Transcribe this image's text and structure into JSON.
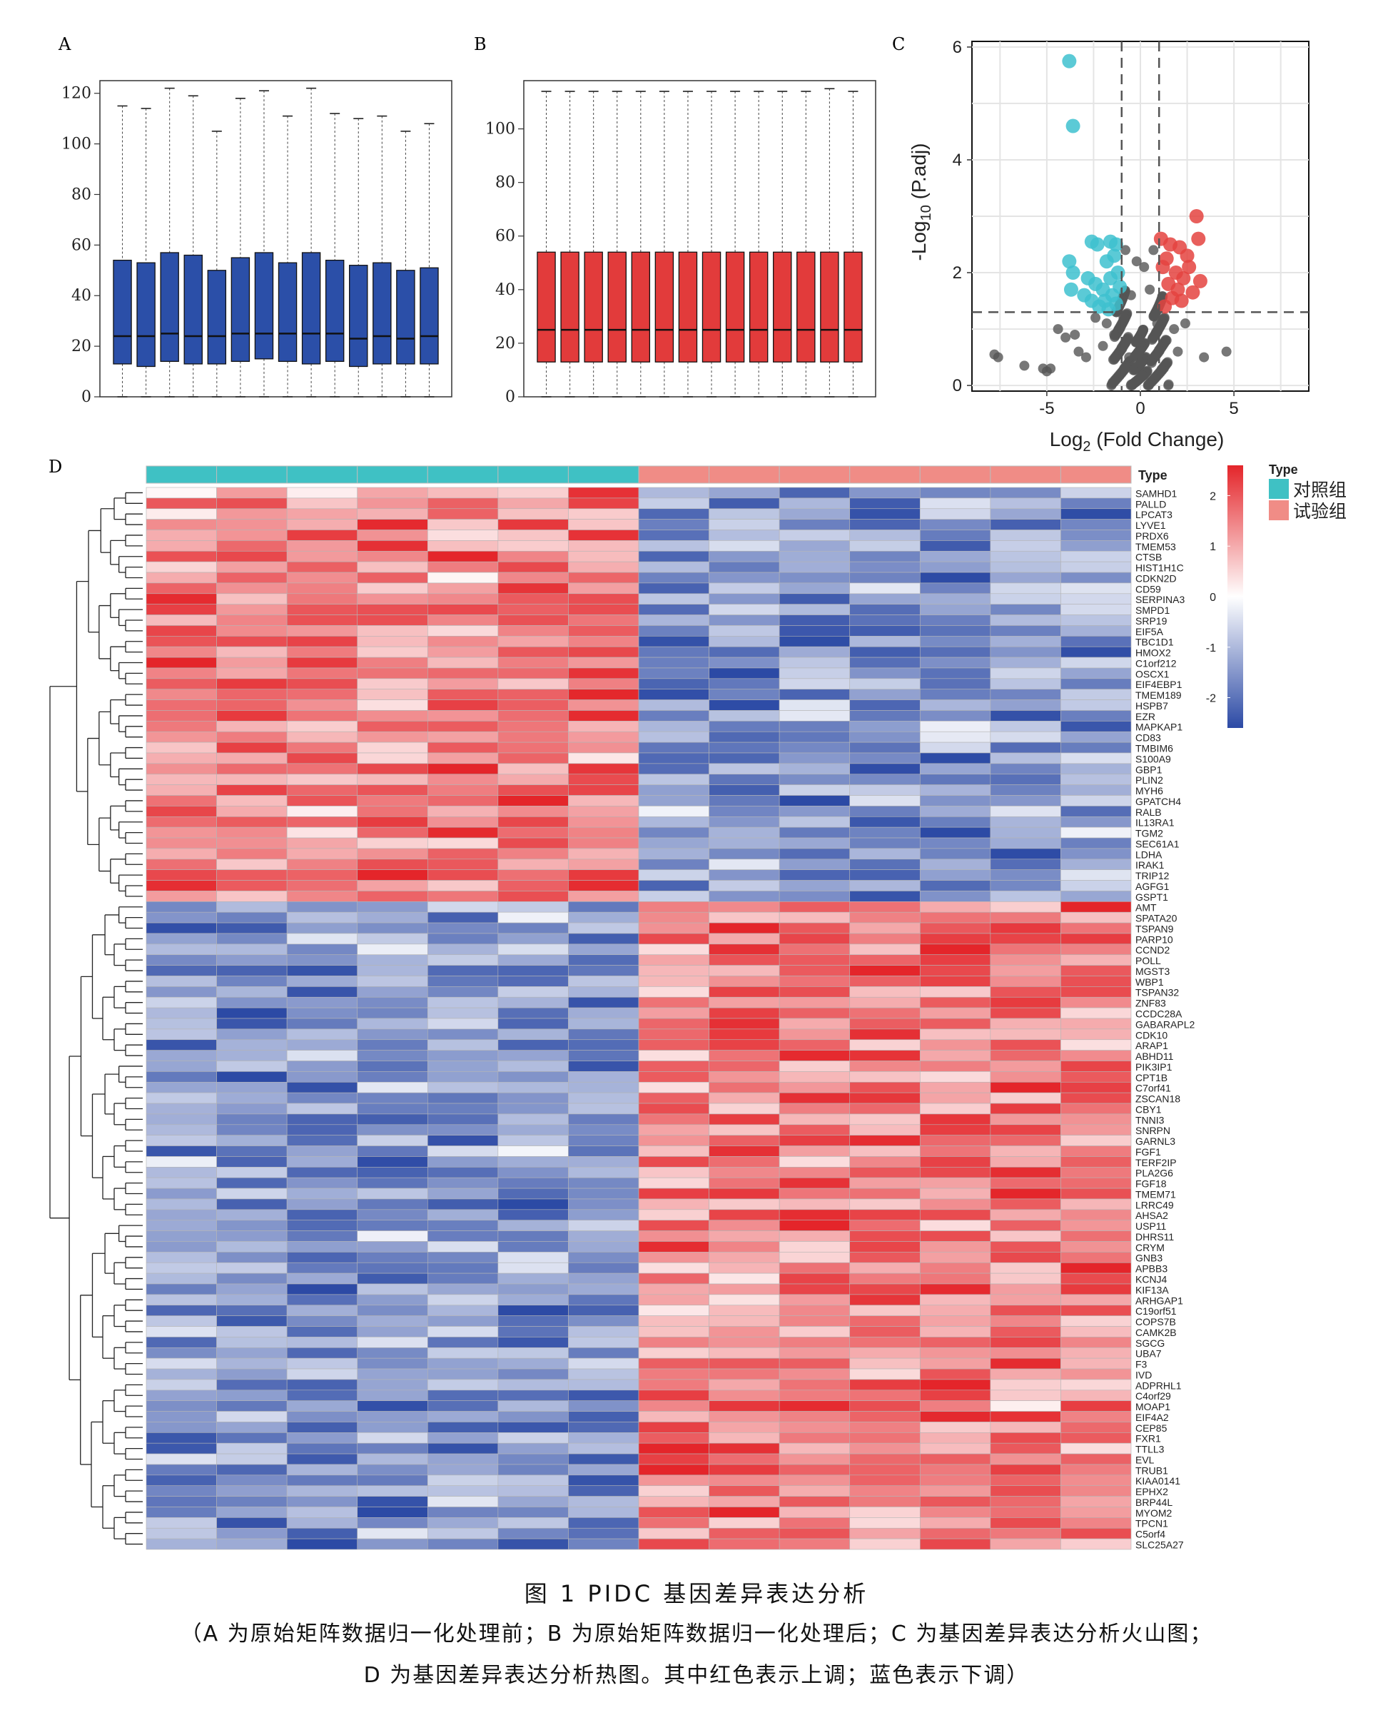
{
  "panels": {
    "A": "A",
    "B": "B",
    "C": "C",
    "D": "D"
  },
  "chart_data": [
    {
      "panel": "A",
      "type": "box",
      "ylim": [
        0,
        125
      ],
      "yticks": [
        0,
        20,
        40,
        60,
        80,
        100,
        120
      ],
      "color": "#2b4fa8",
      "boxes": [
        {
          "min": 0,
          "q1": 13,
          "median": 24,
          "q3": 54,
          "max": 115
        },
        {
          "min": 0,
          "q1": 12,
          "median": 24,
          "q3": 53,
          "max": 114
        },
        {
          "min": 0,
          "q1": 14,
          "median": 25,
          "q3": 57,
          "max": 122
        },
        {
          "min": 0,
          "q1": 13,
          "median": 24,
          "q3": 56,
          "max": 119
        },
        {
          "min": 0,
          "q1": 13,
          "median": 24,
          "q3": 50,
          "max": 105
        },
        {
          "min": 0,
          "q1": 14,
          "median": 25,
          "q3": 55,
          "max": 118
        },
        {
          "min": 0,
          "q1": 15,
          "median": 25,
          "q3": 57,
          "max": 121
        },
        {
          "min": 0,
          "q1": 14,
          "median": 25,
          "q3": 53,
          "max": 111
        },
        {
          "min": 0,
          "q1": 13,
          "median": 25,
          "q3": 57,
          "max": 122
        },
        {
          "min": 0,
          "q1": 14,
          "median": 25,
          "q3": 54,
          "max": 112
        },
        {
          "min": 0,
          "q1": 12,
          "median": 23,
          "q3": 52,
          "max": 110
        },
        {
          "min": 0,
          "q1": 13,
          "median": 24,
          "q3": 53,
          "max": 111
        },
        {
          "min": 0,
          "q1": 13,
          "median": 23,
          "q3": 50,
          "max": 105
        },
        {
          "min": 0,
          "q1": 13,
          "median": 24,
          "q3": 51,
          "max": 108
        }
      ]
    },
    {
      "panel": "B",
      "type": "box",
      "ylim": [
        0,
        118
      ],
      "yticks": [
        0,
        20,
        40,
        60,
        80,
        100
      ],
      "color": "#e23b3b",
      "boxes": [
        {
          "min": 0,
          "q1": 13,
          "median": 25,
          "q3": 54,
          "max": 114
        },
        {
          "min": 0,
          "q1": 13,
          "median": 25,
          "q3": 54,
          "max": 114
        },
        {
          "min": 0,
          "q1": 13,
          "median": 25,
          "q3": 54,
          "max": 114
        },
        {
          "min": 0,
          "q1": 13,
          "median": 25,
          "q3": 54,
          "max": 114
        },
        {
          "min": 0,
          "q1": 13,
          "median": 25,
          "q3": 54,
          "max": 114
        },
        {
          "min": 0,
          "q1": 13,
          "median": 25,
          "q3": 54,
          "max": 114
        },
        {
          "min": 0,
          "q1": 13,
          "median": 25,
          "q3": 54,
          "max": 114
        },
        {
          "min": 0,
          "q1": 13,
          "median": 25,
          "q3": 54,
          "max": 114
        },
        {
          "min": 0,
          "q1": 13,
          "median": 25,
          "q3": 54,
          "max": 114
        },
        {
          "min": 0,
          "q1": 13,
          "median": 25,
          "q3": 54,
          "max": 114
        },
        {
          "min": 0,
          "q1": 13,
          "median": 25,
          "q3": 54,
          "max": 114
        },
        {
          "min": 0,
          "q1": 13,
          "median": 25,
          "q3": 54,
          "max": 114
        },
        {
          "min": 0,
          "q1": 13,
          "median": 25,
          "q3": 54,
          "max": 115
        },
        {
          "min": 0,
          "q1": 13,
          "median": 25,
          "q3": 54,
          "max": 114
        }
      ]
    },
    {
      "panel": "C",
      "type": "scatter",
      "xlim": [
        -9,
        9
      ],
      "ylim": [
        -0.1,
        6.1
      ],
      "xticks": [
        -5,
        0,
        5
      ],
      "yticks": [
        0,
        2,
        4,
        6
      ],
      "xlabel_main": "Log",
      "xlabel_sub": "2",
      "xlabel_rest": " (Fold Change)",
      "ylabel_main": "-Log",
      "ylabel_sub": "10",
      "ylabel_rest": " (P.adj)",
      "thresholds": {
        "x": [
          -1,
          1
        ],
        "y": 1.3
      },
      "colors": {
        "down": "#3ec1cf",
        "up": "#e4433f",
        "ns": "#555555"
      },
      "down": [
        [
          -3.8,
          5.75
        ],
        [
          -3.6,
          4.6
        ],
        [
          -2.6,
          2.55
        ],
        [
          -2.3,
          2.5
        ],
        [
          -1.6,
          2.55
        ],
        [
          -1.3,
          2.5
        ],
        [
          -3.8,
          2.2
        ],
        [
          -3.6,
          2.0
        ],
        [
          -3.7,
          1.7
        ],
        [
          -3.0,
          1.6
        ],
        [
          -2.6,
          1.5
        ],
        [
          -2.2,
          1.4
        ],
        [
          -1.9,
          1.5
        ],
        [
          -1.5,
          1.6
        ],
        [
          -1.3,
          1.45
        ],
        [
          -1.2,
          2.0
        ],
        [
          -1.6,
          1.9
        ],
        [
          -2.0,
          1.7
        ],
        [
          -1.4,
          2.3
        ],
        [
          -1.8,
          2.2
        ],
        [
          -2.4,
          1.8
        ],
        [
          -1.1,
          1.75
        ],
        [
          -1.7,
          1.35
        ],
        [
          -2.8,
          1.9
        ]
      ],
      "up": [
        [
          3.0,
          3.0
        ],
        [
          3.1,
          2.6
        ],
        [
          1.1,
          2.6
        ],
        [
          1.6,
          2.5
        ],
        [
          2.1,
          2.45
        ],
        [
          2.5,
          2.3
        ],
        [
          3.2,
          1.85
        ],
        [
          2.8,
          1.65
        ],
        [
          2.2,
          1.5
        ],
        [
          1.3,
          1.4
        ],
        [
          1.5,
          1.8
        ],
        [
          1.9,
          2.0
        ],
        [
          2.3,
          1.9
        ],
        [
          1.2,
          2.1
        ],
        [
          1.7,
          1.55
        ],
        [
          2.6,
          2.1
        ],
        [
          1.4,
          2.25
        ],
        [
          2.0,
          1.7
        ]
      ],
      "ns": [
        [
          -7.8,
          0.55
        ],
        [
          -7.6,
          0.5
        ],
        [
          -6.2,
          0.35
        ],
        [
          -5.2,
          0.3
        ],
        [
          -5.0,
          0.25
        ],
        [
          -4.8,
          0.3
        ],
        [
          -4.4,
          1.0
        ],
        [
          -4.0,
          0.85
        ],
        [
          -3.5,
          0.9
        ],
        [
          -3.3,
          0.6
        ],
        [
          -2.9,
          0.5
        ],
        [
          4.6,
          0.6
        ],
        [
          3.4,
          0.5
        ],
        [
          -0.5,
          1.6
        ],
        [
          0.5,
          1.7
        ],
        [
          -0.8,
          2.4
        ],
        [
          0.7,
          2.4
        ],
        [
          -0.2,
          2.2
        ],
        [
          0.2,
          2.1
        ],
        [
          -0.9,
          1.2
        ],
        [
          0.9,
          1.1
        ],
        [
          -1.4,
          0.9
        ],
        [
          1.4,
          0.8
        ],
        [
          -2.0,
          0.7
        ],
        [
          2.0,
          0.6
        ],
        [
          -0.6,
          0.5
        ],
        [
          0.6,
          0.4
        ],
        [
          -1.8,
          1.1
        ],
        [
          1.8,
          1.0
        ],
        [
          -2.4,
          1.2
        ],
        [
          2.4,
          1.1
        ]
      ],
      "cluster": [
        [
          -1.0,
          0.0,
          0.55,
          1.7
        ],
        [
          1.0,
          0.0,
          0.55,
          1.6
        ],
        [
          0.0,
          0.0,
          0.45,
          1.0
        ]
      ]
    },
    {
      "panel": "D",
      "type": "heatmap",
      "annotation_label": "Type",
      "legend_title": "Type",
      "groups": [
        "对照组",
        "试验组"
      ],
      "group_colors": [
        "#3fc1c4",
        "#f08c86"
      ],
      "samples_per_group": [
        7,
        7
      ],
      "scale": {
        "ticks": [
          2,
          1,
          0,
          -1,
          -2
        ],
        "min": -2.6,
        "max": 2.6,
        "colors": [
          "#2c4aa5",
          "#ffffff",
          "#e4252a"
        ]
      },
      "genes": [
        "SAMHD1",
        "PALLD",
        "LPCAT3",
        "LYVE1",
        "PRDX6",
        "TMEM53",
        "CTSB",
        "HIST1H1C",
        "CDKN2D",
        "CD59",
        "SERPINA3",
        "SMPD1",
        "SRP19",
        "EIF5A",
        "TBC1D1",
        "HMOX2",
        "C1orf212",
        "OSCX1",
        "EIF4EBP1",
        "TMEM189",
        "HSPB7",
        "EZR",
        "MAPKAP1",
        "CD83",
        "TMBIM6",
        "S100A9",
        "GBP1",
        "PLIN2",
        "MYH6",
        "GPATCH4",
        "RALB",
        "IL13RA1",
        "TGM2",
        "SEC61A1",
        "LDHA",
        "IRAK1",
        "TRIP12",
        "AGFG1",
        "GSPT1",
        "AMT",
        "SPATA20",
        "TSPAN9",
        "PARP10",
        "CCND2",
        "POLL",
        "MGST3",
        "WBP1",
        "TSPAN32",
        "ZNF83",
        "CCDC28A",
        "GABARAPL2",
        "CDK10",
        "ARAP1",
        "ABHD11",
        "PIK3IP1",
        "CPT1B",
        "C7orf41",
        "ZSCAN18",
        "CBY1",
        "TNNI3",
        "SNRPN",
        "GARNL3",
        "FGF1",
        "TERF2IP",
        "PLA2G6",
        "FGF18",
        "TMEM71",
        "LRRC49",
        "AHSA2",
        "USP11",
        "DHRS11",
        "CRYM",
        "GNB3",
        "APBB3",
        "KCNJ4",
        "KIF13A",
        "ARHGAP1",
        "C19orf51",
        "COPS7B",
        "CAMK2B",
        "SGCG",
        "UBA7",
        "F3",
        "IVD",
        "ADPRHL1",
        "C4orf29",
        "MOAP1",
        "EIF4A2",
        "CEP85",
        "FXR1",
        "TTLL3",
        "EVL",
        "TRUB1",
        "KIAA0141",
        "EPHX2",
        "BRP44L",
        "MYOM2",
        "TPCN1",
        "C5orf4",
        "SLC25A27"
      ],
      "n_up_first": 39
    }
  ],
  "caption": {
    "title": "图 1 PIDC 基因差异表达分析",
    "line1": "（A 为原始矩阵数据归一化处理前；B 为原始矩阵数据归一化处理后；C 为基因差异表达分析火山图；",
    "line2": "D 为基因差异表达分析热图。其中红色表示上调；蓝色表示下调）"
  }
}
